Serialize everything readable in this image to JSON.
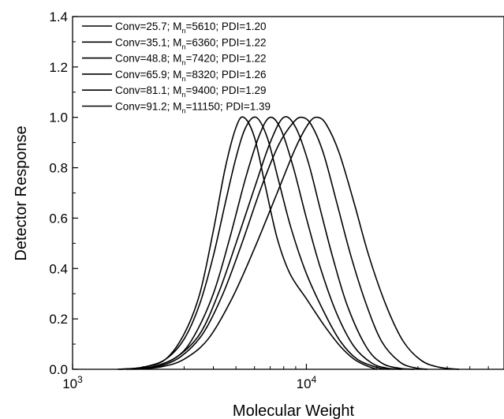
{
  "chart_data": {
    "type": "line",
    "xlabel": "Molecular Weight",
    "ylabel": "Detector Response",
    "x_scale": "log",
    "xlim": [
      1000,
      70000
    ],
    "ylim": [
      0,
      1.4
    ],
    "x_ticks": [
      {
        "value": 1000,
        "mantissa": "10",
        "exp": "3"
      },
      {
        "value": 10000,
        "mantissa": "10",
        "exp": "4"
      }
    ],
    "y_ticks": [
      "0.0",
      "0.2",
      "0.4",
      "0.6",
      "0.8",
      "1.0",
      "1.2",
      "1.4"
    ],
    "legend_position": "top-left",
    "line_color": "#000000",
    "series": [
      {
        "name_parts": {
          "pre": "Conv=25.7; M",
          "sub": "n",
          "post": "=5610; PDI=1.20"
        },
        "points": [
          [
            1560,
            0
          ],
          [
            2000,
            0.008
          ],
          [
            2500,
            0.04
          ],
          [
            3000,
            0.14
          ],
          [
            3500,
            0.3
          ],
          [
            4000,
            0.55
          ],
          [
            4500,
            0.8
          ],
          [
            5000,
            0.96
          ],
          [
            5400,
            1.0
          ],
          [
            6000,
            0.92
          ],
          [
            6700,
            0.72
          ],
          [
            7500,
            0.52
          ],
          [
            8500,
            0.38
          ],
          [
            10000,
            0.28
          ],
          [
            12000,
            0.17
          ],
          [
            14000,
            0.09
          ],
          [
            16000,
            0.04
          ],
          [
            18000,
            0.015
          ],
          [
            20000,
            0
          ]
        ]
      },
      {
        "name_parts": {
          "pre": "Conv=35.1; M",
          "sub": "n",
          "post": "=6360; PDI=1.22"
        },
        "points": [
          [
            1600,
            0
          ],
          [
            2000,
            0.008
          ],
          [
            2500,
            0.04
          ],
          [
            3000,
            0.12
          ],
          [
            3500,
            0.26
          ],
          [
            4000,
            0.45
          ],
          [
            4500,
            0.66
          ],
          [
            5000,
            0.84
          ],
          [
            5500,
            0.96
          ],
          [
            6100,
            1.0
          ],
          [
            6800,
            0.92
          ],
          [
            7600,
            0.75
          ],
          [
            8600,
            0.56
          ],
          [
            10000,
            0.38
          ],
          [
            12000,
            0.22
          ],
          [
            14000,
            0.11
          ],
          [
            16500,
            0.04
          ],
          [
            20000,
            0.008
          ],
          [
            22500,
            0
          ]
        ]
      },
      {
        "name_parts": {
          "pre": "Conv=48.8; M",
          "sub": "n",
          "post": "=7420; PDI=1.22"
        },
        "points": [
          [
            1700,
            0
          ],
          [
            2200,
            0.01
          ],
          [
            2800,
            0.05
          ],
          [
            3300,
            0.13
          ],
          [
            4000,
            0.3
          ],
          [
            4700,
            0.52
          ],
          [
            5500,
            0.76
          ],
          [
            6300,
            0.93
          ],
          [
            7000,
            1.0
          ],
          [
            7800,
            0.95
          ],
          [
            8800,
            0.8
          ],
          [
            10000,
            0.6
          ],
          [
            11500,
            0.4
          ],
          [
            13500,
            0.22
          ],
          [
            16000,
            0.09
          ],
          [
            19000,
            0.025
          ],
          [
            22000,
            0.005
          ],
          [
            25500,
            0
          ]
        ]
      },
      {
        "name_parts": {
          "pre": "Conv=65.9; M",
          "sub": "n",
          "post": "=8320; PDI=1.26"
        },
        "points": [
          [
            1750,
            0
          ],
          [
            2200,
            0.01
          ],
          [
            2800,
            0.05
          ],
          [
            3500,
            0.14
          ],
          [
            4200,
            0.3
          ],
          [
            5000,
            0.5
          ],
          [
            6000,
            0.72
          ],
          [
            7000,
            0.9
          ],
          [
            8000,
            1.0
          ],
          [
            9000,
            0.96
          ],
          [
            10200,
            0.82
          ],
          [
            11500,
            0.63
          ],
          [
            13000,
            0.44
          ],
          [
            15000,
            0.25
          ],
          [
            18000,
            0.09
          ],
          [
            21000,
            0.025
          ],
          [
            25000,
            0.004
          ],
          [
            29000,
            0
          ]
        ]
      },
      {
        "name_parts": {
          "pre": "Conv=81.1; M",
          "sub": "n",
          "post": "=9400; PDI=1.29"
        },
        "points": [
          [
            1800,
            0
          ],
          [
            2300,
            0.01
          ],
          [
            2900,
            0.05
          ],
          [
            3600,
            0.14
          ],
          [
            4400,
            0.3
          ],
          [
            5300,
            0.5
          ],
          [
            6400,
            0.72
          ],
          [
            7600,
            0.89
          ],
          [
            8800,
            0.98
          ],
          [
            9600,
            1.0
          ],
          [
            10500,
            0.97
          ],
          [
            11800,
            0.86
          ],
          [
            13500,
            0.66
          ],
          [
            15500,
            0.45
          ],
          [
            18000,
            0.26
          ],
          [
            21000,
            0.11
          ],
          [
            25000,
            0.03
          ],
          [
            29000,
            0.006
          ],
          [
            33000,
            0
          ]
        ]
      },
      {
        "name_parts": {
          "pre": "Conv=91.2; M",
          "sub": "n",
          "post": "=11150; PDI=1.39"
        },
        "points": [
          [
            1850,
            0
          ],
          [
            2400,
            0.01
          ],
          [
            3000,
            0.04
          ],
          [
            3800,
            0.12
          ],
          [
            4800,
            0.28
          ],
          [
            6000,
            0.48
          ],
          [
            7500,
            0.7
          ],
          [
            9000,
            0.88
          ],
          [
            10300,
            0.98
          ],
          [
            11200,
            1.0
          ],
          [
            12200,
            0.97
          ],
          [
            13800,
            0.86
          ],
          [
            16000,
            0.66
          ],
          [
            18500,
            0.45
          ],
          [
            22000,
            0.25
          ],
          [
            26000,
            0.11
          ],
          [
            31000,
            0.035
          ],
          [
            37000,
            0.008
          ],
          [
            45000,
            0
          ]
        ]
      }
    ]
  }
}
